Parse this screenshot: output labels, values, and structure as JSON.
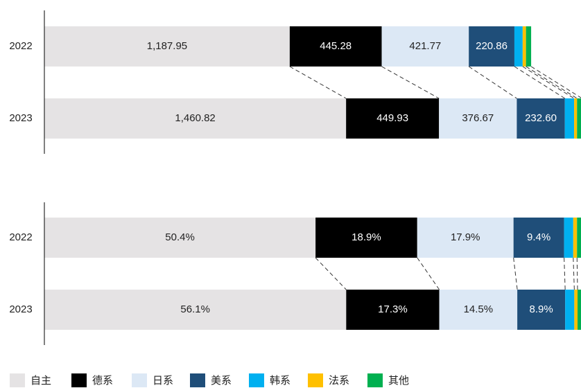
{
  "chart_data": [
    {
      "type": "stacked_barh",
      "categories": [
        "2022",
        "2023"
      ],
      "xlim": [
        0,
        2605
      ],
      "series": [
        {
          "name": "自主",
          "color": "#e5e3e4",
          "values": [
            1187.95,
            1460.82
          ],
          "value_labels": [
            "1,187.95",
            "1,460.82"
          ]
        },
        {
          "name": "德系",
          "color": "#000000",
          "values": [
            445.28,
            449.93
          ],
          "value_labels": [
            "445.28",
            "449.93"
          ]
        },
        {
          "name": "日系",
          "color": "#dce8f5",
          "values": [
            421.77,
            376.67
          ],
          "value_labels": [
            "421.77",
            "376.67"
          ]
        },
        {
          "name": "美系",
          "color": "#1f4e79",
          "values": [
            220.86,
            232.6
          ],
          "value_labels": [
            "220.86",
            "232.60"
          ]
        },
        {
          "name": "韩系",
          "color": "#00b0f0",
          "values": [
            40,
            45
          ]
        },
        {
          "name": "法系",
          "color": "#ffc000",
          "values": [
            16,
            14
          ]
        },
        {
          "name": "其他",
          "color": "#00b050",
          "values": [
            25,
            24
          ]
        }
      ]
    },
    {
      "type": "stacked_barh",
      "categories": [
        "2022",
        "2023"
      ],
      "xlim": [
        0,
        100
      ],
      "series": [
        {
          "color": "#e5e3e4",
          "values": [
            50.4,
            56.1
          ],
          "value_labels": [
            "50.4%",
            "56.1%"
          ]
        },
        {
          "color": "#000000",
          "values": [
            18.9,
            17.3
          ],
          "value_labels": [
            "18.9%",
            "17.3%"
          ]
        },
        {
          "color": "#dce8f5",
          "values": [
            17.9,
            14.5
          ],
          "value_labels": [
            "17.9%",
            "14.5%"
          ]
        },
        {
          "color": "#1f4e79",
          "values": [
            9.4,
            8.9
          ],
          "value_labels": [
            "9.4%",
            "8.9%"
          ]
        },
        {
          "color": "#00b0f0",
          "values": [
            1.7,
            1.7
          ]
        },
        {
          "color": "#ffc000",
          "values": [
            0.7,
            0.6
          ]
        },
        {
          "color": "#00b050",
          "values": [
            1.0,
            0.9
          ]
        }
      ]
    }
  ]
}
